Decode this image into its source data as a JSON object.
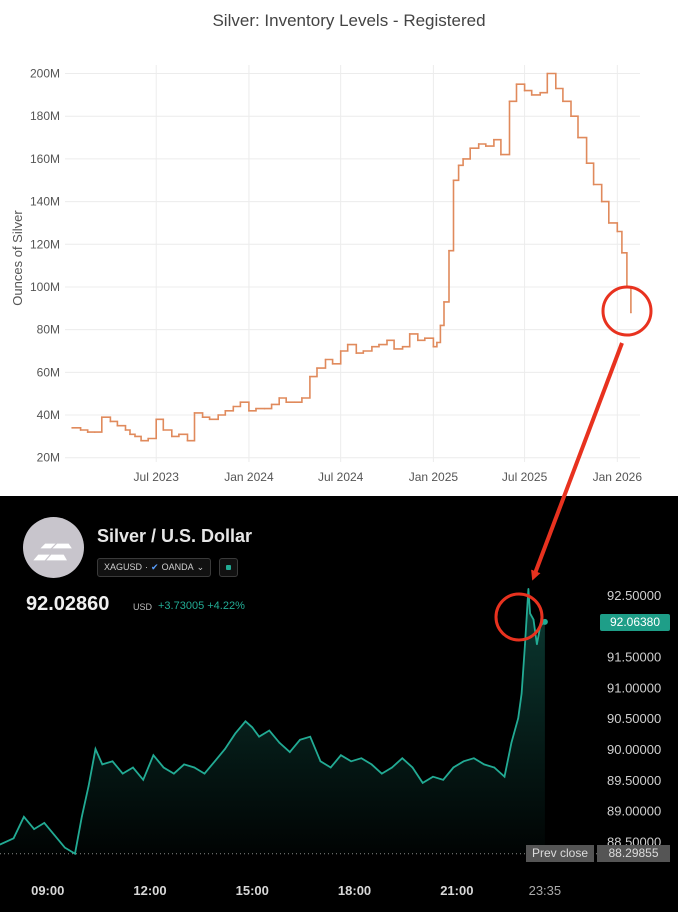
{
  "chart_data": [
    {
      "type": "line",
      "title": "Silver: Inventory Levels - Registered",
      "ylabel": "Ounces of Silver",
      "xlabel": "",
      "ylim": [
        18,
        204
      ],
      "y_ticks": [
        "20M",
        "40M",
        "60M",
        "80M",
        "100M",
        "120M",
        "140M",
        "160M",
        "180M",
        "200M"
      ],
      "x_ticks": [
        "Jul 2023",
        "Jan 2024",
        "Jul 2024",
        "Jan 2025",
        "Jul 2025",
        "Jan 2026"
      ],
      "x_tick_dates": [
        "2023-07-01",
        "2024-01-01",
        "2024-07-01",
        "2025-01-01",
        "2025-07-01",
        "2026-01-01"
      ],
      "grid": true,
      "color": "#e08a5c",
      "series": [
        {
          "x": [
            "2023-01-15",
            "2023-02-01",
            "2023-02-15",
            "2023-03-01",
            "2023-03-15",
            "2023-04-01",
            "2023-04-15",
            "2023-05-01",
            "2023-05-10",
            "2023-05-20",
            "2023-06-01",
            "2023-06-15",
            "2023-07-01",
            "2023-07-15",
            "2023-08-01",
            "2023-08-15",
            "2023-09-01",
            "2023-09-15",
            "2023-10-01",
            "2023-10-15",
            "2023-11-01",
            "2023-11-15",
            "2023-12-01",
            "2023-12-15",
            "2024-01-01",
            "2024-01-15",
            "2024-02-01",
            "2024-02-15",
            "2024-03-01",
            "2024-03-15",
            "2024-04-01",
            "2024-04-15",
            "2024-05-01",
            "2024-05-15",
            "2024-06-01",
            "2024-06-15",
            "2024-07-01",
            "2024-07-15",
            "2024-08-01",
            "2024-08-15",
            "2024-09-01",
            "2024-09-15",
            "2024-10-01",
            "2024-10-15",
            "2024-11-01",
            "2024-11-15",
            "2024-12-01",
            "2024-12-15",
            "2025-01-01",
            "2025-01-08",
            "2025-01-15",
            "2025-01-22",
            "2025-02-01",
            "2025-02-10",
            "2025-02-20",
            "2025-03-01",
            "2025-03-15",
            "2025-04-01",
            "2025-04-15",
            "2025-05-01",
            "2025-05-15",
            "2025-06-01",
            "2025-06-15",
            "2025-07-01",
            "2025-07-15",
            "2025-08-01",
            "2025-08-15",
            "2025-09-01",
            "2025-09-15",
            "2025-10-01",
            "2025-10-15",
            "2025-11-01",
            "2025-11-15",
            "2025-12-01",
            "2025-12-15",
            "2026-01-01",
            "2026-01-10",
            "2026-01-20",
            "2026-01-28"
          ],
          "y": [
            34,
            33,
            32,
            32,
            39,
            37,
            35,
            33,
            31,
            30,
            28,
            29,
            38,
            33,
            30,
            31,
            28,
            41,
            39,
            38,
            40,
            42,
            44,
            46,
            42,
            43,
            43,
            45,
            48,
            46,
            46,
            48,
            58,
            62,
            66,
            64,
            70,
            73,
            69,
            70,
            72,
            73,
            75,
            71,
            72,
            78,
            75,
            76,
            72,
            74,
            82,
            93,
            117,
            150,
            157,
            160,
            165,
            167,
            166,
            169,
            162,
            187,
            195,
            192,
            190,
            191,
            200,
            193,
            187,
            180,
            170,
            158,
            148,
            140,
            130,
            126,
            116,
            100,
            88
          ]
        }
      ]
    },
    {
      "type": "area",
      "title": "Silver / U.S. Dollar",
      "symbol": "XAGUSD",
      "source": "OANDA",
      "price": "92.02860",
      "currency": "USD",
      "change": "+3.73005",
      "change_pct": "+4.22%",
      "last_value": 92.0638,
      "last_label": "92.06380",
      "prev_close_label": "Prev close",
      "prev_close": 88.29855,
      "prev_close_text": "88.29855",
      "ylim": [
        88.35,
        92.65
      ],
      "y_ticks": [
        "92.50000",
        "92.00000",
        "91.50000",
        "91.00000",
        "90.50000",
        "90.00000",
        "89.50000",
        "89.00000",
        "88.50000"
      ],
      "y_tick_values": [
        92.5,
        92.0,
        91.5,
        91.0,
        90.5,
        90.0,
        89.5,
        89.0,
        88.5
      ],
      "x_ticks": [
        "09:00",
        "12:00",
        "15:00",
        "18:00",
        "21:00",
        "23:35"
      ],
      "x_tick_hours": [
        9,
        12,
        15,
        18,
        21,
        23.583
      ],
      "color": "#22ab94",
      "series": [
        {
          "x": [
            7.6,
            8.0,
            8.3,
            8.6,
            8.9,
            9.2,
            9.5,
            9.8,
            10.0,
            10.2,
            10.4,
            10.6,
            10.9,
            11.2,
            11.5,
            11.8,
            12.1,
            12.4,
            12.7,
            13.0,
            13.3,
            13.6,
            13.9,
            14.2,
            14.5,
            14.8,
            15.0,
            15.2,
            15.5,
            15.8,
            16.1,
            16.4,
            16.7,
            17.0,
            17.3,
            17.6,
            17.9,
            18.2,
            18.5,
            18.8,
            19.1,
            19.4,
            19.7,
            20.0,
            20.3,
            20.6,
            20.9,
            21.2,
            21.5,
            21.8,
            22.1,
            22.4,
            22.6,
            22.8,
            22.9,
            23.0,
            23.1,
            23.15,
            23.25,
            23.35,
            23.45,
            23.583
          ],
          "y": [
            88.45,
            88.55,
            88.9,
            88.7,
            88.8,
            88.6,
            88.4,
            88.3,
            88.9,
            89.4,
            90.0,
            89.75,
            89.8,
            89.6,
            89.7,
            89.5,
            89.9,
            89.7,
            89.6,
            89.75,
            89.7,
            89.6,
            89.8,
            90.0,
            90.25,
            90.45,
            90.35,
            90.2,
            90.3,
            90.1,
            89.95,
            90.15,
            90.2,
            89.8,
            89.7,
            89.9,
            89.8,
            89.85,
            89.75,
            89.6,
            89.7,
            89.85,
            89.7,
            89.45,
            89.55,
            89.5,
            89.7,
            89.8,
            89.85,
            89.75,
            89.7,
            89.55,
            90.1,
            90.5,
            90.9,
            91.7,
            92.6,
            92.2,
            92.1,
            91.7,
            92.0,
            92.06
          ]
        }
      ]
    }
  ],
  "bottom": {
    "title": "Silver / U.S. Dollar",
    "symbol": "XAGUSD",
    "source": "OANDA",
    "price": "92.02860",
    "currency": "USD",
    "change": "+3.73005 +4.22%",
    "price_tag": "92.06380",
    "prev_close_label": "Prev close",
    "prev_close_value": "88.29855"
  }
}
